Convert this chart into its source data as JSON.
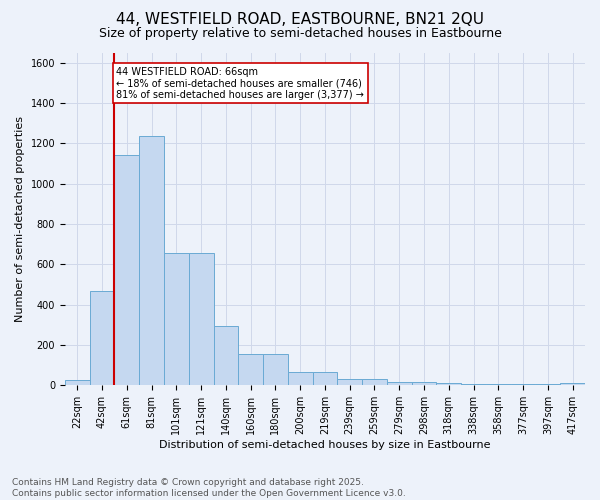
{
  "title": "44, WESTFIELD ROAD, EASTBOURNE, BN21 2QU",
  "subtitle": "Size of property relative to semi-detached houses in Eastbourne",
  "xlabel": "Distribution of semi-detached houses by size in Eastbourne",
  "ylabel": "Number of semi-detached properties",
  "categories": [
    "22sqm",
    "42sqm",
    "61sqm",
    "81sqm",
    "101sqm",
    "121sqm",
    "140sqm",
    "160sqm",
    "180sqm",
    "200sqm",
    "219sqm",
    "239sqm",
    "259sqm",
    "279sqm",
    "298sqm",
    "318sqm",
    "338sqm",
    "358sqm",
    "377sqm",
    "397sqm",
    "417sqm"
  ],
  "values": [
    25,
    470,
    1140,
    1235,
    655,
    655,
    295,
    155,
    155,
    65,
    65,
    32,
    32,
    18,
    18,
    12,
    6,
    6,
    6,
    6,
    12
  ],
  "bar_color": "#c5d8f0",
  "bar_edge_color": "#6aaad4",
  "grid_color": "#d0d8ea",
  "background_color": "#edf2fa",
  "annotation_text": "44 WESTFIELD ROAD: 66sqm\n← 18% of semi-detached houses are smaller (746)\n81% of semi-detached houses are larger (3,377) →",
  "annotation_box_color": "#ffffff",
  "annotation_border_color": "#cc0000",
  "red_line_index": 2,
  "ylim": [
    0,
    1650
  ],
  "yticks": [
    0,
    200,
    400,
    600,
    800,
    1000,
    1200,
    1400,
    1600
  ],
  "title_fontsize": 11,
  "subtitle_fontsize": 9,
  "ylabel_fontsize": 8,
  "xlabel_fontsize": 8,
  "tick_fontsize": 7,
  "annot_fontsize": 7,
  "footer_fontsize": 6.5,
  "footer": "Contains HM Land Registry data © Crown copyright and database right 2025.\nContains public sector information licensed under the Open Government Licence v3.0."
}
